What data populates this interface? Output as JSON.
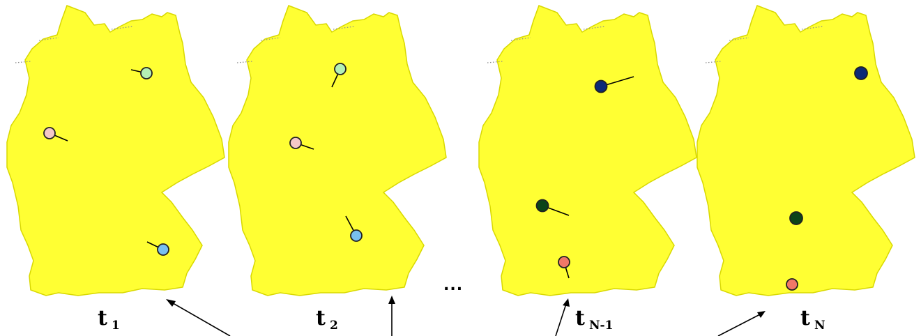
{
  "ellipsis": "...",
  "colors": {
    "map_fill": "#ffff33",
    "pin_light_green": "#b4f0b4",
    "pin_light_pink": "#f4c8c8",
    "pin_light_blue": "#78c0f0",
    "pin_dark_navy": "#0c2a78",
    "pin_dark_green": "#0c4418",
    "pin_salmon": "#f07868"
  },
  "panels": [
    {
      "label_main": "t",
      "label_sub": "1",
      "pins": [
        {
          "color": "pin_light_green"
        },
        {
          "color": "pin_light_pink"
        },
        {
          "color": "pin_light_blue"
        }
      ]
    },
    {
      "label_main": "t",
      "label_sub": "2",
      "pins": [
        {
          "color": "pin_light_green"
        },
        {
          "color": "pin_light_pink"
        },
        {
          "color": "pin_light_blue"
        }
      ]
    },
    {
      "label_main": "t",
      "label_sub": "N-1",
      "pins": [
        {
          "color": "pin_dark_navy"
        },
        {
          "color": "pin_dark_green"
        },
        {
          "color": "pin_salmon"
        }
      ]
    },
    {
      "label_main": "t",
      "label_sub": "N",
      "pins": [
        {
          "color": "pin_dark_navy"
        },
        {
          "color": "pin_dark_green"
        },
        {
          "color": "pin_salmon"
        }
      ]
    }
  ]
}
